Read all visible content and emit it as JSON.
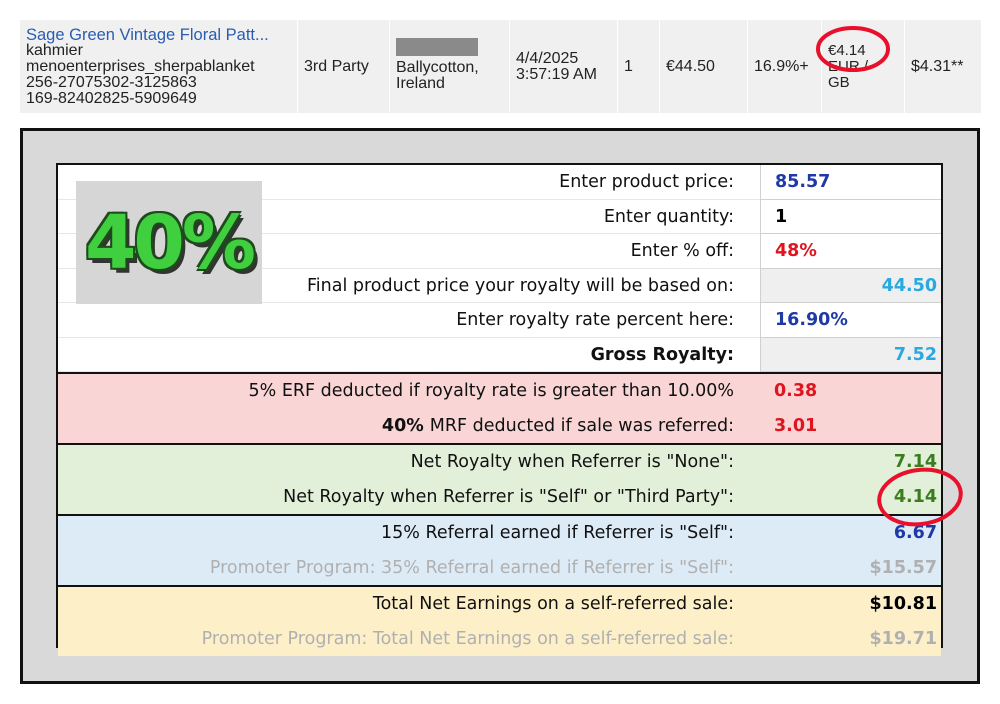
{
  "top_row": {
    "product": {
      "title": "Sage Green Vintage Floral Patt...",
      "lines": [
        "kahmier",
        "menoenterprises_sherpablanket",
        "256-27075302-3125863",
        "169-82402825-5909649"
      ]
    },
    "referrer": "3rd Party",
    "location": "Ballycotton, Ireland",
    "date": "4/4/2025",
    "time": "3:57:19 AM",
    "quantity": "1",
    "price": "€44.50",
    "rate": "16.9%+",
    "royalty": [
      "€4.14",
      "EUR /",
      "GB"
    ],
    "royalty_usd": "$4.31**"
  },
  "calculator": {
    "badge": "40%",
    "rows": [
      {
        "label": "Enter product price:",
        "value": "85.57"
      },
      {
        "label": "Enter quantity:",
        "value": "1"
      },
      {
        "label": "Enter % off:",
        "value": "48%"
      },
      {
        "label": "Final product price your royalty will be based on:",
        "value": "44.50"
      },
      {
        "label": "Enter royalty rate percent here:",
        "value": "16.90%"
      },
      {
        "label": "Gross Royalty:",
        "value": "7.52"
      },
      {
        "label": "5% ERF deducted if royalty rate is greater than 10.00%",
        "value": "0.38"
      },
      {
        "label_bold": "40%",
        "label": "MRF deducted if sale was referred:",
        "value": "3.01"
      },
      {
        "label": "Net Royalty when Referrer is \"None\":",
        "value": "7.14"
      },
      {
        "label": "Net Royalty when Referrer is \"Self\" or \"Third Party\":",
        "value": "4.14"
      },
      {
        "label": "15% Referral earned if Referrer is \"Self\":",
        "value": "6.67"
      },
      {
        "label": "Promoter Program: 35% Referral earned if Referrer is \"Self\":",
        "value": "$15.57"
      },
      {
        "label": "Total Net Earnings on a self-referred sale:",
        "value": "$10.81"
      },
      {
        "label": "Promoter Program: Total Net Earnings on a self-referred sale:",
        "value": "$19.71"
      }
    ]
  }
}
